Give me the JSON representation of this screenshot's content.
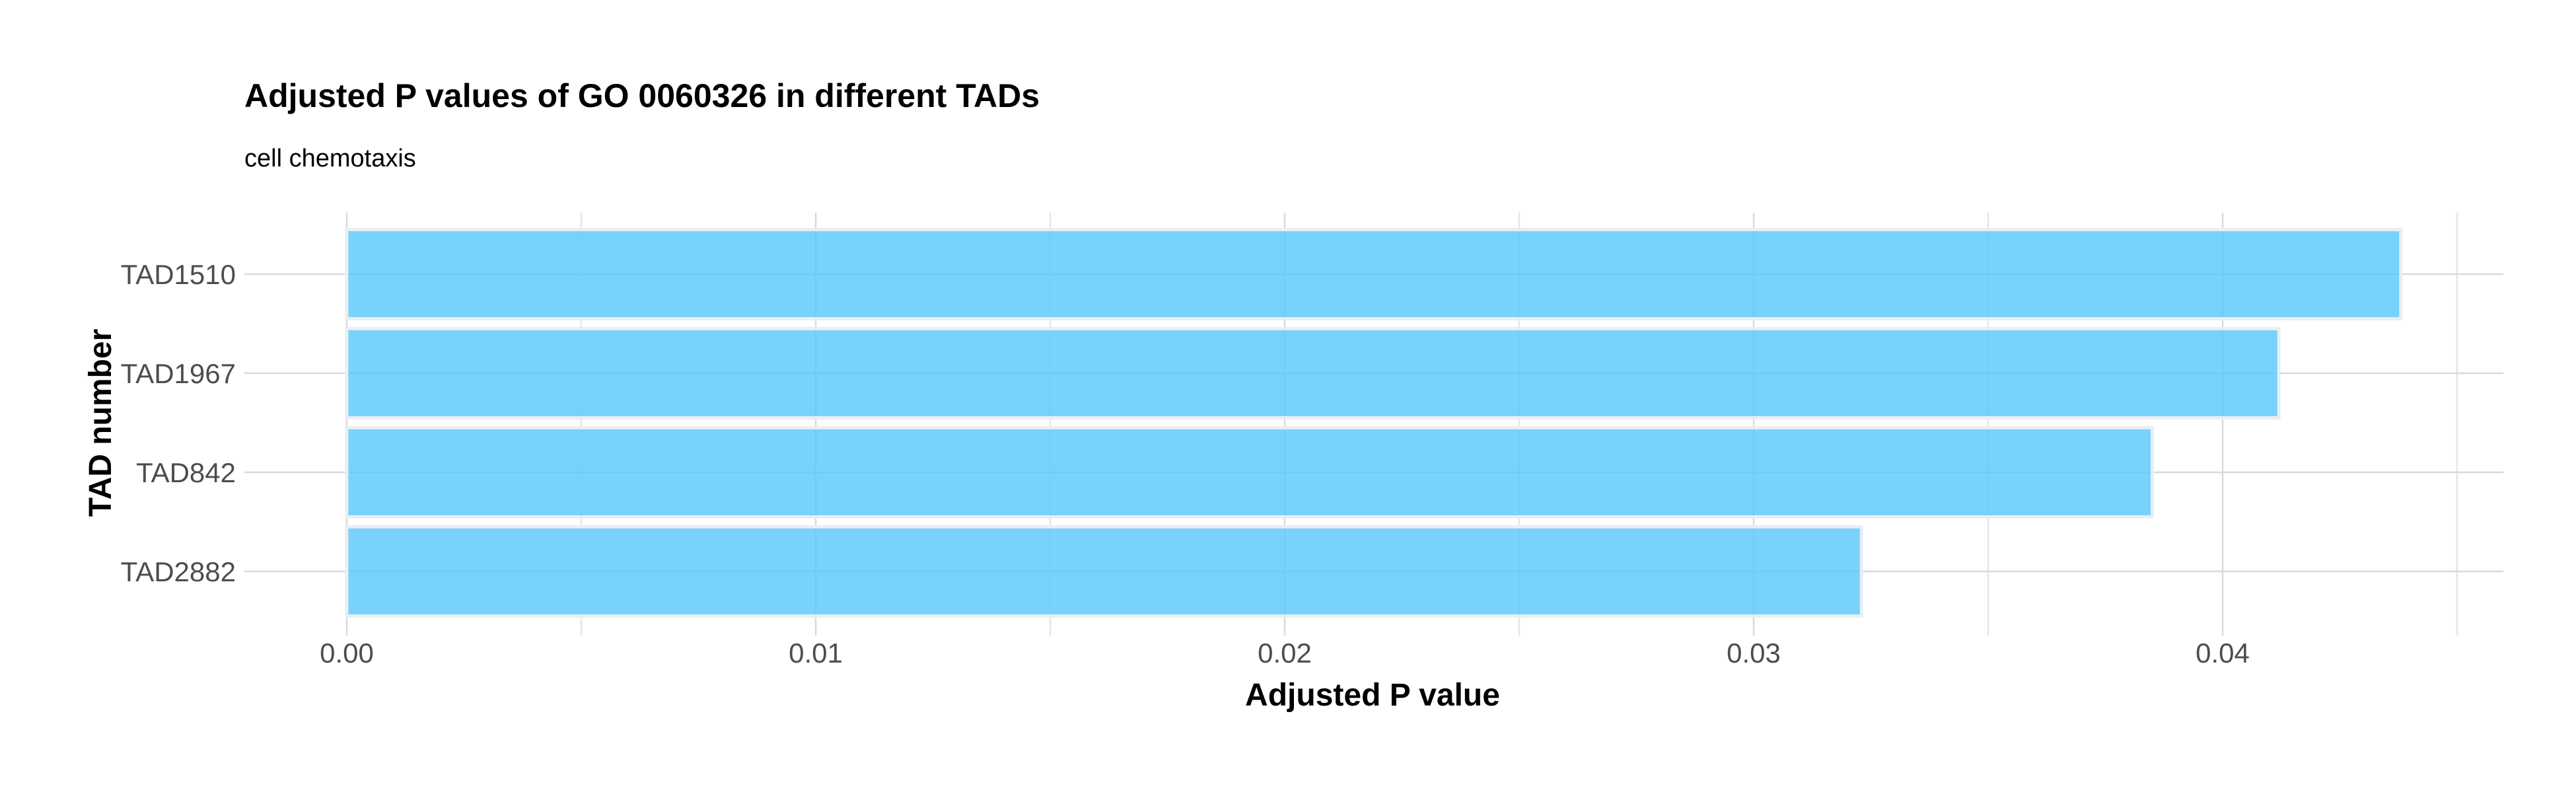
{
  "chart_data": {
    "type": "bar",
    "orientation": "horizontal",
    "title": "Adjusted P values of GO 0060326 in different TADs",
    "subtitle": "cell chemotaxis",
    "xlabel": "Adjusted P value",
    "ylabel": "TAD number",
    "categories": [
      "TAD1510",
      "TAD1967",
      "TAD842",
      "TAD2882"
    ],
    "values": [
      0.0438,
      0.0412,
      0.0385,
      0.0323
    ],
    "xlim": [
      0,
      0.045
    ],
    "xticks": [
      0.0,
      0.01,
      0.02,
      0.03,
      0.04
    ],
    "xtick_labels": [
      "0.00",
      "0.01",
      "0.02",
      "0.03",
      "0.04"
    ],
    "grid": true,
    "legend": "none",
    "colors": {
      "bar_fill": "#5AC8FA",
      "bar_border": "#e8eef3"
    }
  }
}
